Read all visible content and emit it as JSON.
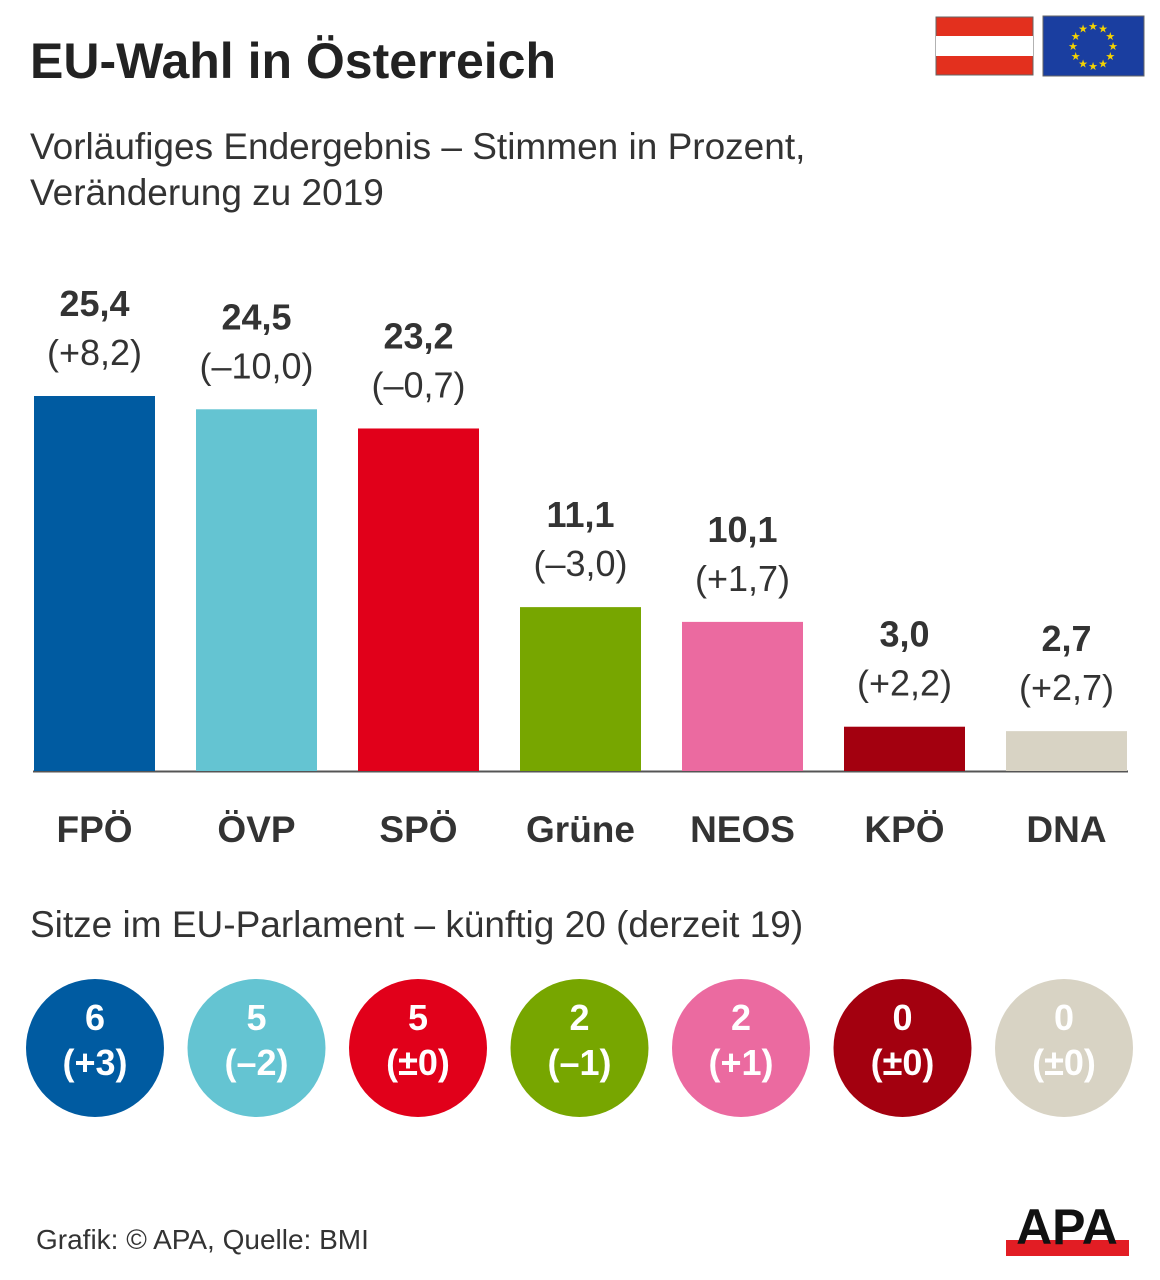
{
  "title": "EU-Wahl in Österreich",
  "subtitle": "Vorläufiges Endergebnis – Stimmen in Prozent, Veränderung zu 2019",
  "seats_title": "Sitze im EU-Parlament – künftig 20 (derzeit 19)",
  "footer": "Grafik: © APA, Quelle: BMI",
  "logo": "APA",
  "flags": [
    "austria-flag",
    "eu-flag"
  ],
  "chart_data": {
    "type": "bar",
    "title": "EU-Wahl in Österreich",
    "categories": [
      "FPÖ",
      "ÖVP",
      "SPÖ",
      "Grüne",
      "NEOS",
      "KPÖ",
      "DNA"
    ],
    "values": [
      25.4,
      24.5,
      23.2,
      11.1,
      10.1,
      3.0,
      2.7
    ],
    "value_labels": [
      "25,4",
      "24,5",
      "23,2",
      "11,1",
      "10,1",
      "3,0",
      "2,7"
    ],
    "change_labels": [
      "(+8,2)",
      "(–10,0)",
      "(–0,7)",
      "(–3,0)",
      "(+1,7)",
      "(+2,2)",
      "(+2,7)"
    ],
    "changes": [
      8.2,
      -10.0,
      -0.7,
      -3.0,
      1.7,
      2.2,
      2.7
    ],
    "colors": [
      "#005ba1",
      "#64c4d2",
      "#e1001a",
      "#77a600",
      "#eb6aa0",
      "#a3000f",
      "#d8d3c4"
    ],
    "ylim": [
      0,
      26
    ],
    "grid": false,
    "seats": {
      "values": [
        6,
        5,
        5,
        2,
        2,
        0,
        0
      ],
      "value_labels": [
        "6",
        "5",
        "5",
        "2",
        "2",
        "0",
        "0"
      ],
      "change_labels": [
        "(+3)",
        "(–2)",
        "(±0)",
        "(–1)",
        "(+1)",
        "(±0)",
        "(±0)"
      ]
    }
  }
}
